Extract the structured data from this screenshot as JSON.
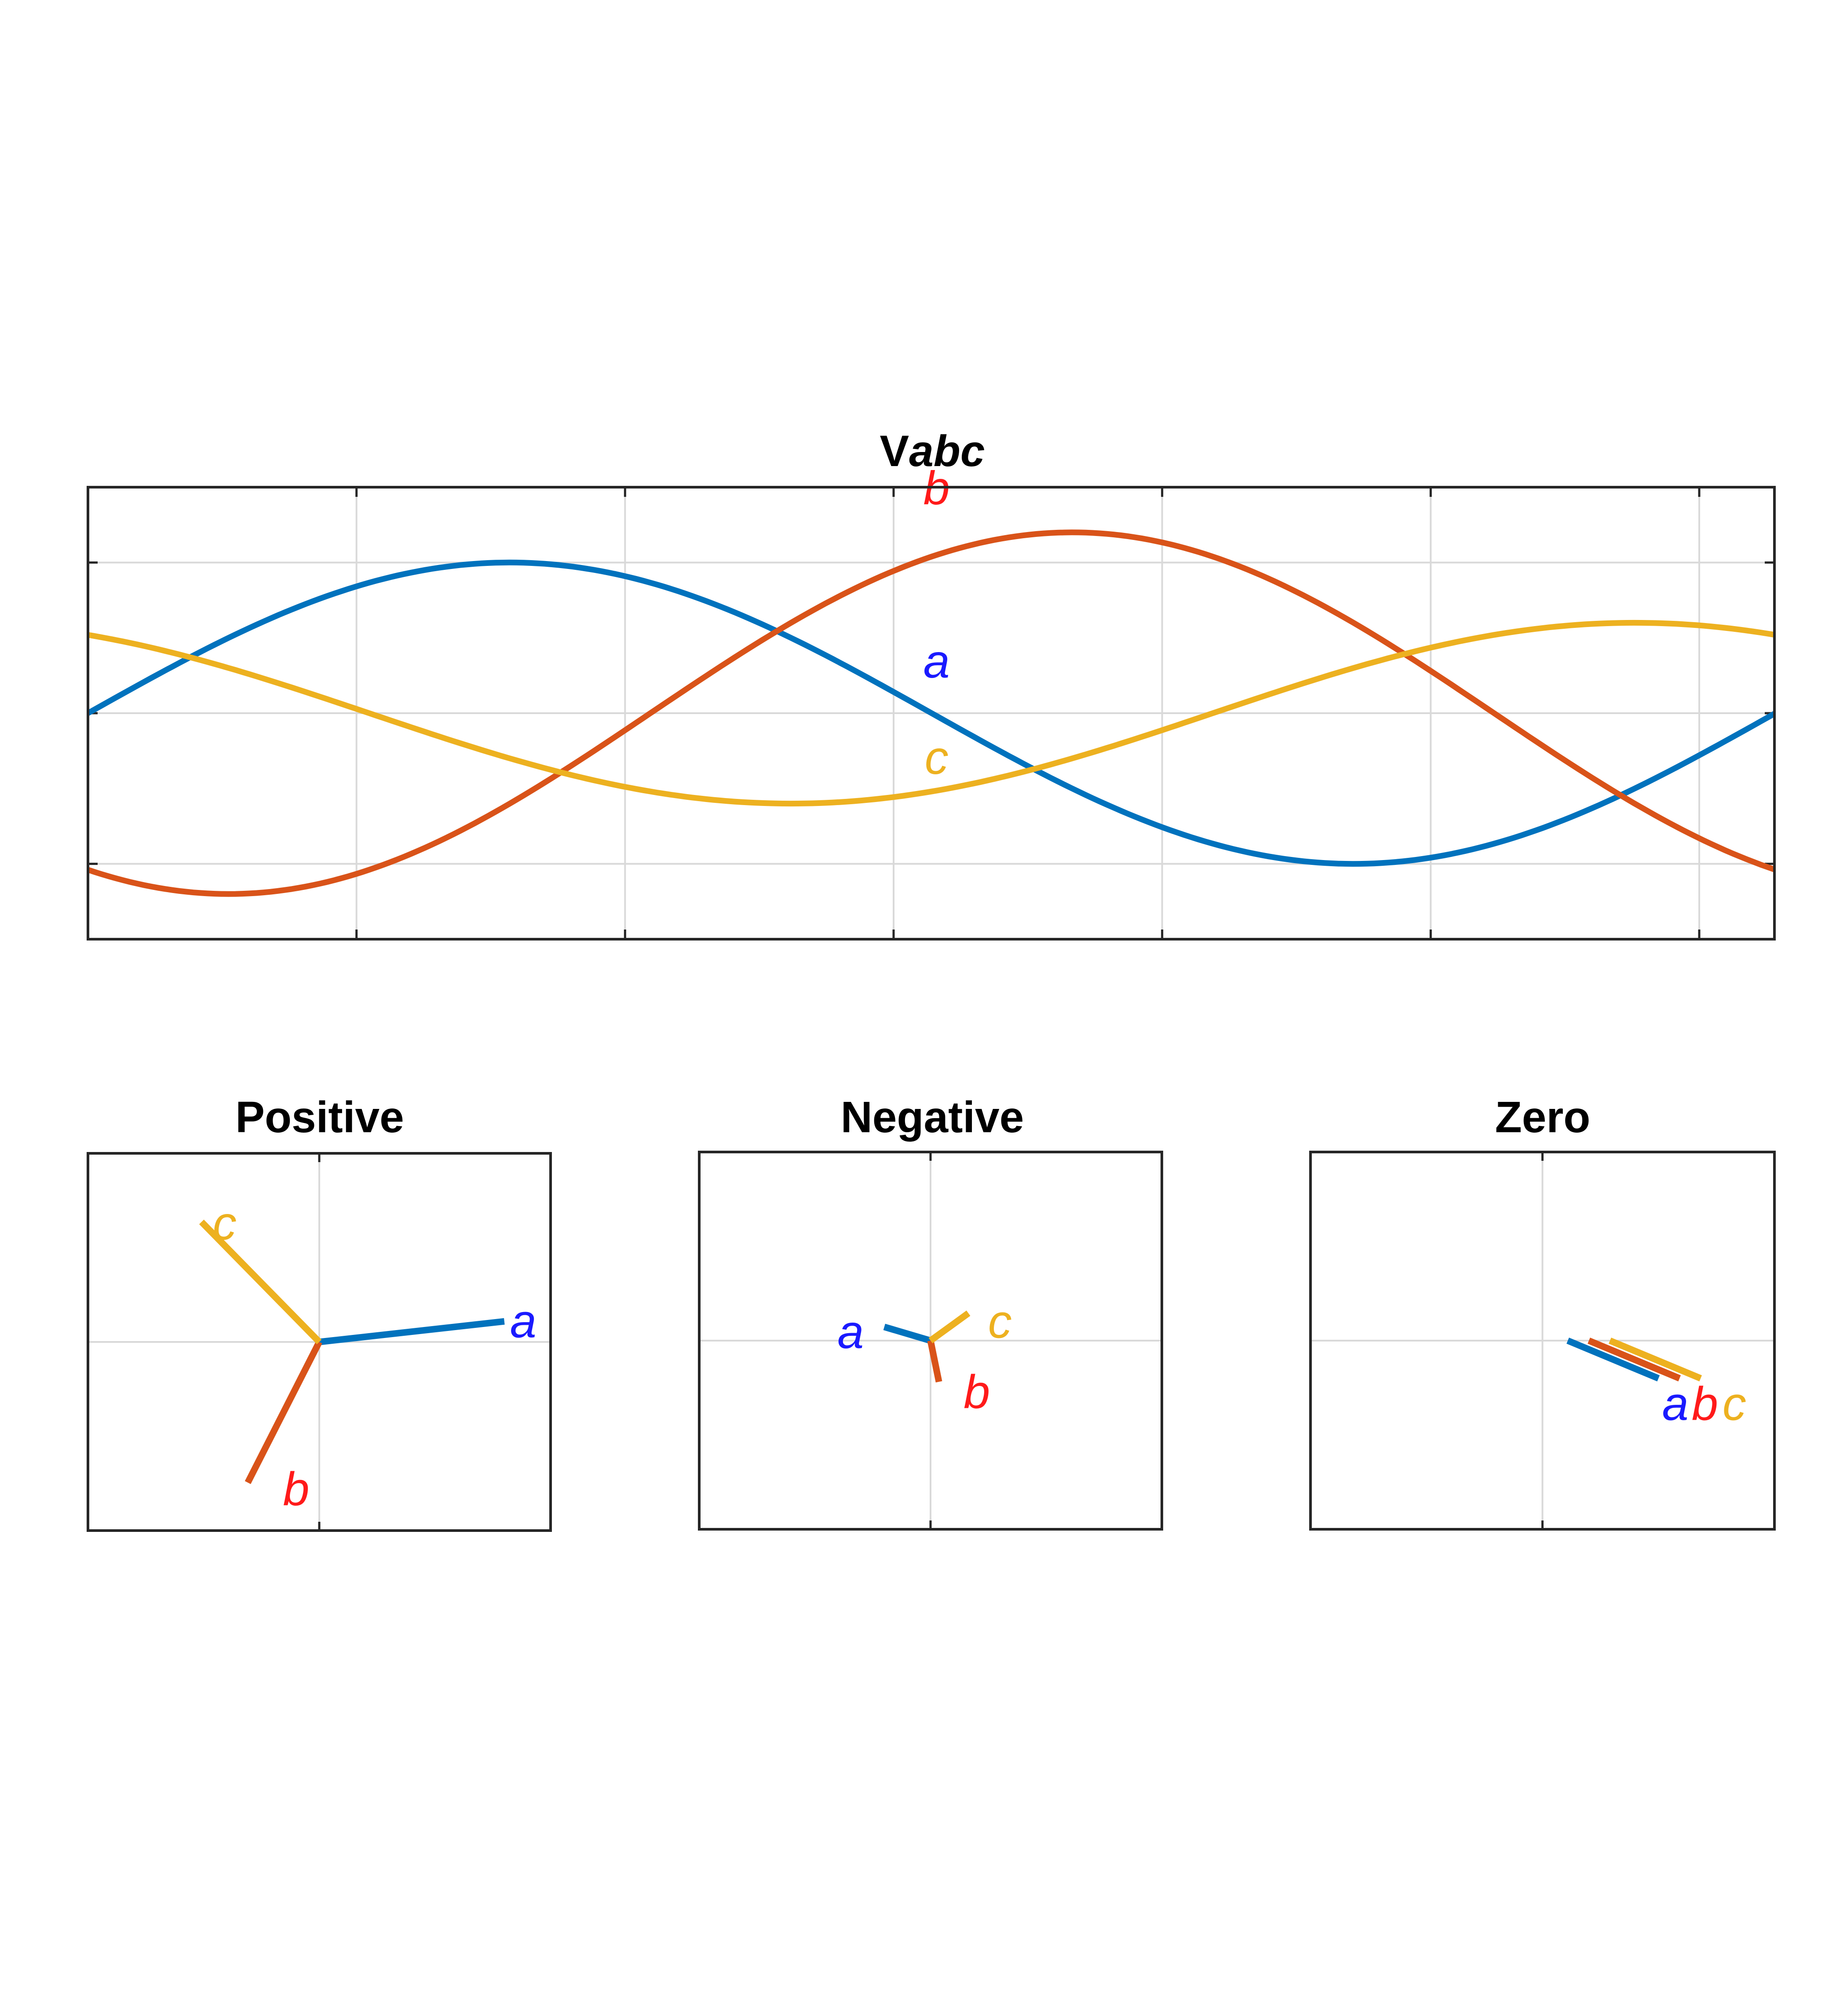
{
  "colors": {
    "a_line": "#0072BD",
    "b_line": "#D95319",
    "c_line": "#EDB120",
    "a_label": "#1a1aff",
    "b_label": "#ff1a1a",
    "c_label": "#EDB120",
    "grid": "#d9d9d9",
    "frame": "#262626"
  },
  "chart_data": [
    {
      "type": "line",
      "title_plain": "V",
      "title_italic": "abc",
      "xlim": [
        0,
        6.28
      ],
      "ylim": [
        -1.5,
        1.5
      ],
      "x_ticks": [
        0,
        1,
        2,
        3,
        4,
        5,
        6
      ],
      "y_ticks": [
        -1,
        0,
        1
      ],
      "grid": true,
      "series": [
        {
          "name": "a",
          "amplitude": 1.0,
          "phase_deg": 0
        },
        {
          "name": "b",
          "amplitude": 1.2,
          "phase_deg": -120
        },
        {
          "name": "c",
          "amplitude": 0.6,
          "phase_deg": 120
        }
      ],
      "labels": [
        {
          "text": "b",
          "x": 3.16,
          "y": 1.47
        },
        {
          "text": "a",
          "x": 3.16,
          "y": 0.32
        },
        {
          "text": "c",
          "x": 3.16,
          "y": -0.32
        }
      ]
    },
    {
      "type": "phasor",
      "title": "Positive",
      "xlim": [
        -1.1,
        1.1
      ],
      "ylim": [
        -1.1,
        1.1
      ],
      "grid": true,
      "phasors": [
        {
          "name": "a",
          "x": 0.88,
          "y": 0.12
        },
        {
          "name": "b",
          "x": -0.34,
          "y": -0.82
        },
        {
          "name": "c",
          "x": -0.56,
          "y": 0.7
        }
      ],
      "labels": [
        {
          "text": "a",
          "x": 0.97,
          "y": 0.1
        },
        {
          "text": "b",
          "x": -0.11,
          "y": -0.88
        },
        {
          "text": "c",
          "x": -0.45,
          "y": 0.67
        }
      ]
    },
    {
      "type": "phasor",
      "title": "Negative",
      "xlim": [
        -1.1,
        1.1
      ],
      "ylim": [
        -1.1,
        1.1
      ],
      "grid": true,
      "phasors": [
        {
          "name": "a",
          "x": -0.22,
          "y": 0.08
        },
        {
          "name": "b",
          "x": 0.04,
          "y": -0.24
        },
        {
          "name": "c",
          "x": 0.18,
          "y": 0.16
        }
      ],
      "labels": [
        {
          "text": "a",
          "x": -0.38,
          "y": 0.03
        },
        {
          "text": "b",
          "x": 0.22,
          "y": -0.32
        },
        {
          "text": "c",
          "x": 0.33,
          "y": 0.09
        }
      ]
    },
    {
      "type": "phasor",
      "title": "Zero",
      "xlim": [
        -1.1,
        1.1
      ],
      "ylim": [
        -1.1,
        1.1
      ],
      "grid": true,
      "phasors": [
        {
          "name": "a",
          "x0": 0.12,
          "y0": 0.0,
          "x1": 0.55,
          "y1": -0.22
        },
        {
          "name": "b",
          "x0": 0.22,
          "y0": 0.0,
          "x1": 0.65,
          "y1": -0.22
        },
        {
          "name": "c",
          "x0": 0.32,
          "y0": 0.0,
          "x1": 0.75,
          "y1": -0.22
        }
      ],
      "labels": [
        {
          "text": "a",
          "x": 0.63,
          "y": -0.39
        },
        {
          "text": "b",
          "x": 0.77,
          "y": -0.39
        },
        {
          "text": "c",
          "x": 0.91,
          "y": -0.39
        }
      ]
    }
  ]
}
